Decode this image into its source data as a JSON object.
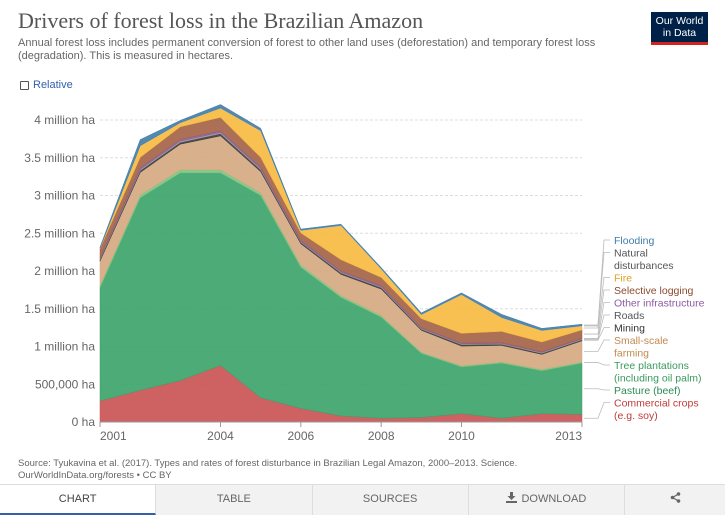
{
  "header": {
    "title": "Drivers of forest loss in the Brazilian Amazon",
    "subtitle": "Annual forest loss includes permanent conversion of forest to other land uses (deforestation) and temporary forest loss (degradation). This is measured in hectares.",
    "logo_line1": "Our World",
    "logo_line2": "in Data",
    "logo_color": "#002147",
    "logo_accent": "#ce261e"
  },
  "controls": {
    "relative_label": "Relative",
    "relative_checked": false
  },
  "footer": {
    "source_line1": "Source: Tyukavina et al. (2017). Types and rates of forest disturbance in Brazilian Legal Amazon, 2000–2013. Science.",
    "source_line2": "OurWorldInData.org/forests • CC BY"
  },
  "tabs": [
    {
      "label": "CHART",
      "active": true,
      "icon": ""
    },
    {
      "label": "TABLE",
      "active": false,
      "icon": ""
    },
    {
      "label": "SOURCES",
      "active": false,
      "icon": ""
    },
    {
      "label": "DOWNLOAD",
      "active": false,
      "icon": "download-icon"
    },
    {
      "label": "",
      "active": false,
      "icon": "share-icon"
    }
  ],
  "chart_data": {
    "type": "area",
    "stacked": true,
    "title": "Drivers of forest loss in the Brazilian Amazon",
    "xlabel": "",
    "ylabel": "",
    "x": [
      2001,
      2002,
      2003,
      2004,
      2005,
      2006,
      2007,
      2008,
      2009,
      2010,
      2011,
      2012,
      2013
    ],
    "x_ticks": [
      {
        "value": 2001,
        "label": "2001"
      },
      {
        "value": 2004,
        "label": "2004"
      },
      {
        "value": 2006,
        "label": "2006"
      },
      {
        "value": 2008,
        "label": "2008"
      },
      {
        "value": 2010,
        "label": "2010"
      },
      {
        "value": 2013,
        "label": "2013"
      }
    ],
    "y_ticks": [
      {
        "value": 0,
        "label": "0 ha"
      },
      {
        "value": 500000,
        "label": "500,000 ha"
      },
      {
        "value": 1000000,
        "label": "1 million ha"
      },
      {
        "value": 1500000,
        "label": "1.5 million ha"
      },
      {
        "value": 2000000,
        "label": "2 million ha"
      },
      {
        "value": 2500000,
        "label": "2.5 million ha"
      },
      {
        "value": 3000000,
        "label": "3 million ha"
      },
      {
        "value": 3500000,
        "label": "3.5 million ha"
      },
      {
        "value": 4000000,
        "label": "4 million ha"
      }
    ],
    "ylim": [
      0,
      4000000
    ],
    "grid": true,
    "legend_position": "right",
    "series": [
      {
        "name": "Commercial crops (e.g. soy)",
        "color": "#c95151",
        "values": [
          280000,
          420000,
          550000,
          750000,
          320000,
          180000,
          80000,
          50000,
          60000,
          110000,
          50000,
          110000,
          100000
        ]
      },
      {
        "name": "Pasture (beef)",
        "color": "#3aa268",
        "values": [
          1500000,
          2550000,
          2750000,
          2550000,
          2680000,
          1870000,
          1570000,
          1340000,
          850000,
          620000,
          730000,
          570000,
          680000
        ]
      },
      {
        "name": "Tree plantations (including oil palm)",
        "color": "#7ac27f",
        "values": [
          30000,
          35000,
          40000,
          40000,
          35000,
          30000,
          25000,
          20000,
          15000,
          15000,
          15000,
          15000,
          15000
        ]
      },
      {
        "name": "Small-scale farming",
        "color": "#d4a77e",
        "values": [
          320000,
          300000,
          340000,
          450000,
          280000,
          280000,
          280000,
          350000,
          290000,
          260000,
          220000,
          200000,
          280000
        ]
      },
      {
        "name": "Mining",
        "color": "#3a3a3a",
        "values": [
          20000,
          25000,
          25000,
          30000,
          25000,
          20000,
          20000,
          20000,
          15000,
          20000,
          15000,
          15000,
          15000
        ]
      },
      {
        "name": "Roads",
        "color": "#9c9c9c",
        "values": [
          10000,
          15000,
          15000,
          15000,
          15000,
          10000,
          10000,
          10000,
          10000,
          10000,
          10000,
          10000,
          10000
        ]
      },
      {
        "name": "Other infrastructure",
        "color": "#8e5aa3",
        "values": [
          15000,
          20000,
          20000,
          20000,
          20000,
          15000,
          15000,
          15000,
          10000,
          10000,
          10000,
          10000,
          10000
        ]
      },
      {
        "name": "Selective logging",
        "color": "#a26143",
        "values": [
          120000,
          140000,
          170000,
          180000,
          130000,
          100000,
          150000,
          110000,
          120000,
          130000,
          150000,
          130000,
          110000
        ]
      },
      {
        "name": "Fire",
        "color": "#f6b93d",
        "values": [
          5000,
          150000,
          50000,
          120000,
          350000,
          30000,
          450000,
          110000,
          50000,
          510000,
          180000,
          150000,
          50000
        ]
      },
      {
        "name": "Natural disturbances",
        "color": "#b5b5b5",
        "values": [
          5000,
          5000,
          5000,
          5000,
          5000,
          5000,
          5000,
          5000,
          5000,
          5000,
          5000,
          5000,
          5000
        ]
      },
      {
        "name": "Flooding",
        "color": "#3f7ca6",
        "values": [
          10000,
          80000,
          30000,
          45000,
          30000,
          15000,
          15000,
          15000,
          20000,
          20000,
          40000,
          25000,
          20000
        ]
      }
    ],
    "legend_entries": [
      {
        "lines": [
          "Flooding"
        ],
        "color": "#3f7ca6"
      },
      {
        "lines": [
          "Natural",
          "disturbances"
        ],
        "color": "#555555"
      },
      {
        "lines": [
          "Fire"
        ],
        "color": "#e0a020"
      },
      {
        "lines": [
          "Selective logging"
        ],
        "color": "#8b4a2e"
      },
      {
        "lines": [
          "Other infrastructure"
        ],
        "color": "#8e5aa3"
      },
      {
        "lines": [
          "Roads"
        ],
        "color": "#555555"
      },
      {
        "lines": [
          "Mining"
        ],
        "color": "#333333"
      },
      {
        "lines": [
          "Small-scale",
          "farming"
        ],
        "color": "#c08a50"
      },
      {
        "lines": [
          "Tree plantations",
          "(including oil palm)"
        ],
        "color": "#3a9a5e"
      },
      {
        "lines": [
          "Pasture (beef)"
        ],
        "color": "#2e8a55"
      },
      {
        "lines": [
          "Commercial crops",
          "(e.g. soy)"
        ],
        "color": "#c03a3a"
      }
    ]
  }
}
